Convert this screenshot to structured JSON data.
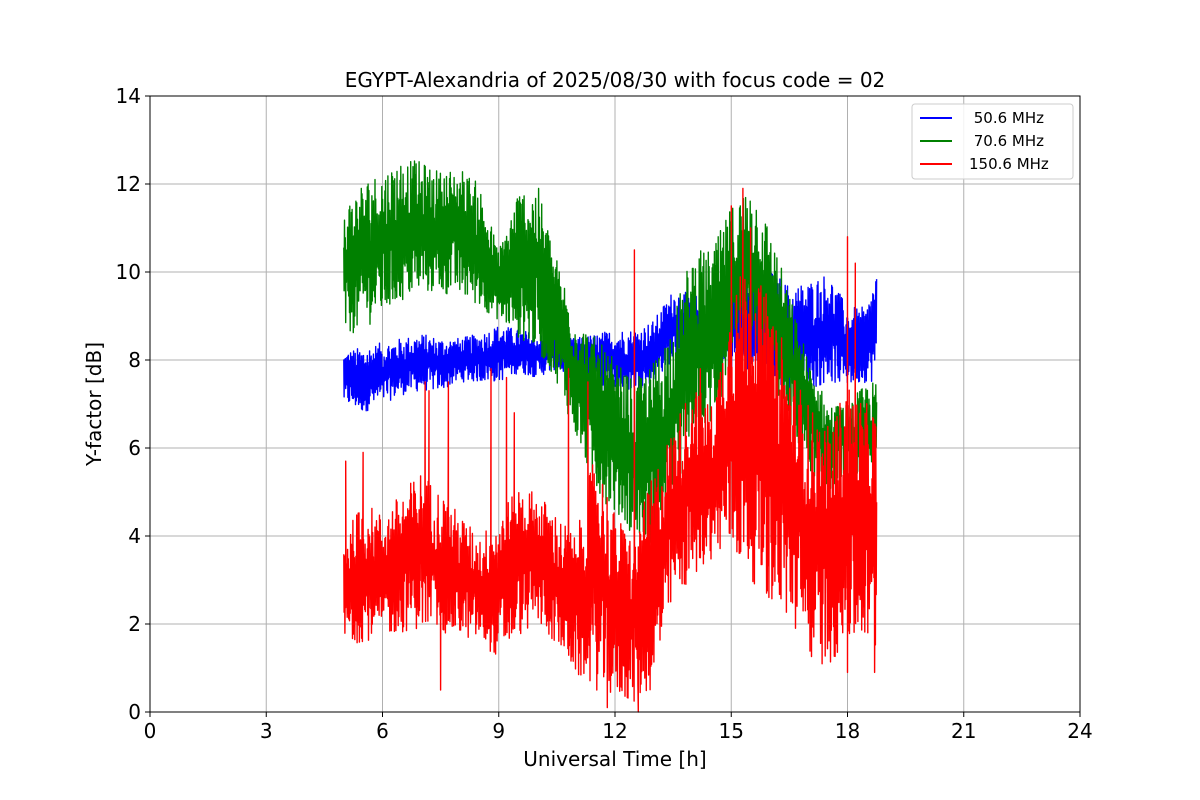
{
  "chart_data": {
    "type": "line",
    "title": "EGYPT-Alexandria of 2025/08/30 with focus code = 02",
    "xlabel": "Universal Time [h]",
    "ylabel": "Y-factor [dB]",
    "xlim": [
      0,
      24
    ],
    "ylim": [
      0,
      14
    ],
    "xticks": [
      0,
      3,
      6,
      9,
      12,
      15,
      18,
      21,
      24
    ],
    "yticks": [
      0,
      2,
      4,
      6,
      8,
      10,
      12,
      14
    ],
    "grid": true,
    "legend_position": "top-right",
    "series": [
      {
        "name": " 50.6 MHz",
        "color": "#0000ff",
        "x": [
          5.0,
          5.5,
          6.0,
          6.5,
          7.0,
          7.5,
          8.0,
          8.5,
          9.0,
          9.5,
          10.0,
          10.5,
          11.0,
          11.5,
          12.0,
          12.5,
          13.0,
          13.5,
          14.0,
          14.5,
          15.0,
          15.5,
          16.0,
          16.5,
          17.0,
          17.5,
          18.0,
          18.5,
          18.75
        ],
        "lower": [
          7.0,
          6.8,
          7.0,
          7.2,
          7.3,
          7.3,
          7.5,
          7.5,
          7.5,
          7.7,
          7.6,
          7.8,
          7.5,
          7.3,
          7.3,
          7.3,
          7.5,
          8.0,
          8.3,
          8.0,
          7.8,
          7.7,
          7.4,
          7.3,
          7.3,
          7.5,
          7.4,
          7.5,
          7.5
        ],
        "upper": [
          8.2,
          8.3,
          8.4,
          8.5,
          8.6,
          8.5,
          8.5,
          8.6,
          8.8,
          8.7,
          8.6,
          8.5,
          8.5,
          8.6,
          8.7,
          8.7,
          8.9,
          9.6,
          9.5,
          9.3,
          9.8,
          10.0,
          10.1,
          9.7,
          9.8,
          10.0,
          9.2,
          9.2,
          10.1
        ]
      },
      {
        "name": " 70.6 MHz",
        "color": "#008000",
        "x": [
          5.0,
          5.5,
          6.0,
          6.5,
          7.0,
          7.5,
          8.0,
          8.5,
          9.0,
          9.5,
          10.0,
          10.5,
          11.0,
          11.5,
          12.0,
          12.5,
          13.0,
          13.5,
          14.0,
          14.5,
          15.0,
          15.5,
          16.0,
          16.5,
          17.0,
          17.5,
          18.0,
          18.5,
          18.75
        ],
        "lower": [
          8.5,
          8.7,
          9.0,
          9.3,
          9.5,
          9.5,
          9.4,
          9.2,
          8.9,
          8.5,
          8.2,
          7.5,
          6.2,
          5.0,
          4.5,
          4.0,
          3.8,
          4.8,
          6.0,
          6.5,
          7.5,
          8.0,
          7.5,
          6.5,
          5.5,
          5.0,
          5.5,
          5.0,
          5.5
        ],
        "upper": [
          11.5,
          12.1,
          12.3,
          12.6,
          12.5,
          12.3,
          12.4,
          12.0,
          10.5,
          11.9,
          12.0,
          10.3,
          9.0,
          8.5,
          8.0,
          7.5,
          8.0,
          9.0,
          10.5,
          10.5,
          11.5,
          12.1,
          11.0,
          9.5,
          8.0,
          7.0,
          7.0,
          7.5,
          7.5
        ]
      },
      {
        "name": "150.6 MHz",
        "color": "#ff0000",
        "x": [
          5.0,
          5.5,
          6.0,
          6.5,
          7.0,
          7.5,
          8.0,
          8.5,
          9.0,
          9.5,
          10.0,
          10.5,
          11.0,
          11.5,
          12.0,
          12.5,
          13.0,
          13.5,
          14.0,
          14.5,
          15.0,
          15.5,
          16.0,
          16.5,
          17.0,
          17.5,
          18.0,
          18.5,
          18.75
        ],
        "lower": [
          1.5,
          1.6,
          1.7,
          1.8,
          1.9,
          1.8,
          1.7,
          1.6,
          1.2,
          1.7,
          2.0,
          1.5,
          0.8,
          0.5,
          0.3,
          0.2,
          0.5,
          2.5,
          3.0,
          3.5,
          3.5,
          3.0,
          2.5,
          2.0,
          1.2,
          1.0,
          1.5,
          1.5,
          1.0
        ],
        "upper": [
          4.0,
          4.8,
          4.5,
          5.0,
          5.5,
          5.0,
          4.5,
          4.0,
          4.5,
          5.2,
          5.0,
          4.5,
          4.0,
          6.0,
          4.5,
          4.0,
          5.5,
          6.5,
          7.5,
          7.0,
          9.5,
          10.5,
          9.0,
          8.0,
          7.0,
          6.5,
          7.5,
          7.0,
          7.0
        ],
        "spikes": [
          [
            5.05,
            5.7
          ],
          [
            5.5,
            5.9
          ],
          [
            7.1,
            7.5
          ],
          [
            7.2,
            7.3
          ],
          [
            7.7,
            7.5
          ],
          [
            8.8,
            7.8
          ],
          [
            9.2,
            7.6
          ],
          [
            9.4,
            6.8
          ],
          [
            10.8,
            7.8
          ],
          [
            11.3,
            7.5
          ],
          [
            12.5,
            10.5
          ],
          [
            14.2,
            7.8
          ],
          [
            15.0,
            11.5
          ],
          [
            15.3,
            11.9
          ],
          [
            15.5,
            11.0
          ],
          [
            15.9,
            9.5
          ],
          [
            16.3,
            8.5
          ],
          [
            18.0,
            10.8
          ],
          [
            18.2,
            10.2
          ]
        ],
        "dips": [
          [
            7.5,
            0.5
          ],
          [
            11.8,
            0.1
          ],
          [
            12.6,
            0.0
          ],
          [
            18.0,
            0.9
          ],
          [
            18.7,
            0.9
          ]
        ]
      }
    ]
  }
}
